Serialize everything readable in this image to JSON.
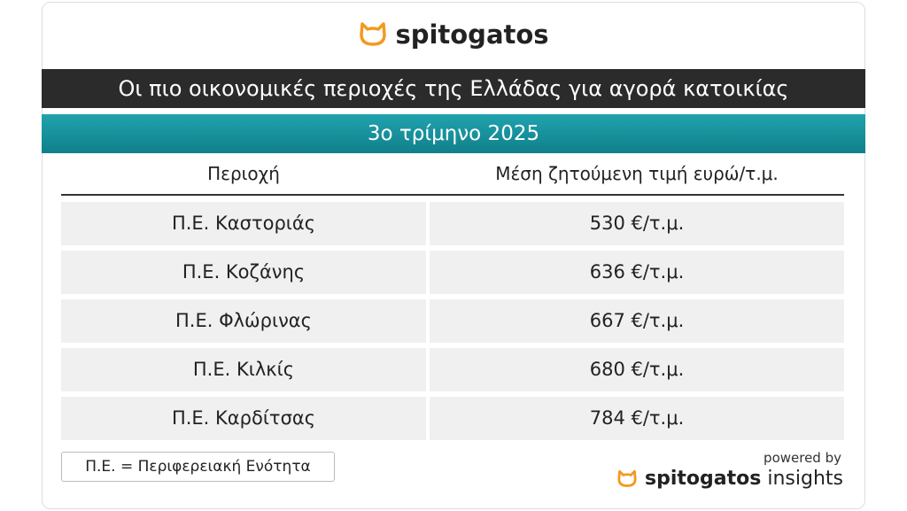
{
  "header": {
    "brand": "spitogatos",
    "title": "Οι πιο οικονομικές περιοχές της Ελλάδας για αγορά κατοικίας",
    "subtitle": "3ο τρίμηνο 2025"
  },
  "table": {
    "columns": [
      "Περιοχή",
      "Μέση ζητούμενη τιμή ευρώ/τ.μ."
    ],
    "rows": [
      [
        "Π.Ε. Καστοριάς",
        "530 €/τ.μ."
      ],
      [
        "Π.Ε. Κοζάνης",
        "636 €/τ.μ."
      ],
      [
        "Π.Ε. Φλώρινας",
        "667 €/τ.μ."
      ],
      [
        "Π.Ε. Κιλκίς",
        "680 €/τ.μ."
      ],
      [
        "Π.Ε. Καρδίτσας",
        "784 €/τ.μ."
      ]
    ]
  },
  "footer": {
    "note": "Π.Ε. = Περιφερειακή Ενότητα",
    "powered": "powered by",
    "brand": "spitogatos",
    "product": "insights"
  }
}
